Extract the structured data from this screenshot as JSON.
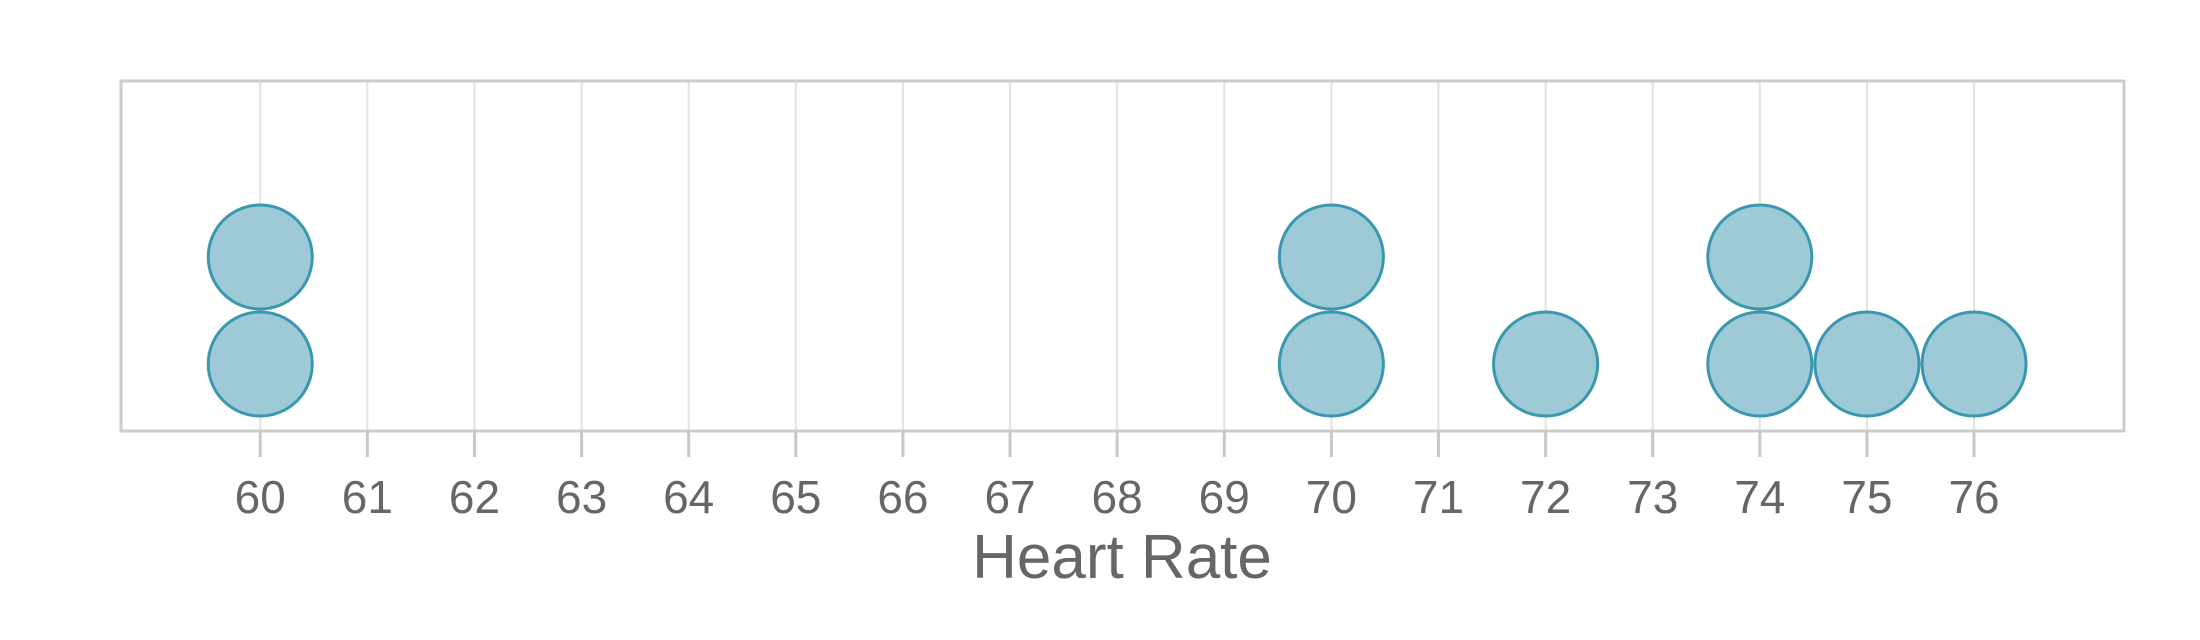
{
  "chart_data": {
    "type": "dot",
    "title": "",
    "xlabel": "Heart Rate",
    "ylabel": "",
    "xlim": [
      58.7,
      77.4
    ],
    "ticks": [
      60,
      61,
      62,
      63,
      64,
      65,
      66,
      67,
      68,
      69,
      70,
      71,
      72,
      73,
      74,
      75,
      76
    ],
    "values": [
      60,
      60,
      70,
      70,
      72,
      74,
      74,
      75,
      76
    ],
    "grid": true,
    "colors": {
      "dot_fill": "#9ecad8",
      "dot_stroke": "#3a97b0",
      "grid": "#e3e3e3",
      "frame": "#cccccc",
      "tick_mark": "#c8c8c8",
      "text": "#666666"
    }
  }
}
